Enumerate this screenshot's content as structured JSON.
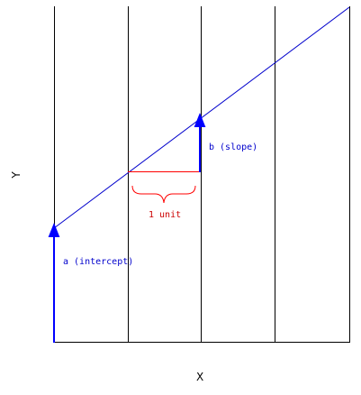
{
  "axes": {
    "x_label": "X",
    "y_label": "Y"
  },
  "annotations": {
    "intercept_label": "a (intercept)",
    "slope_label": "b (slope)",
    "run_label": "1 unit"
  },
  "colors": {
    "regression_line": "#0000cc",
    "intercept_arrow": "#0000ff",
    "slope_arrow": "#0000ff",
    "run_marker": "#ff0000",
    "run_label": "#cc0000",
    "grid": "#000000",
    "axis_text": "#000000"
  }
}
